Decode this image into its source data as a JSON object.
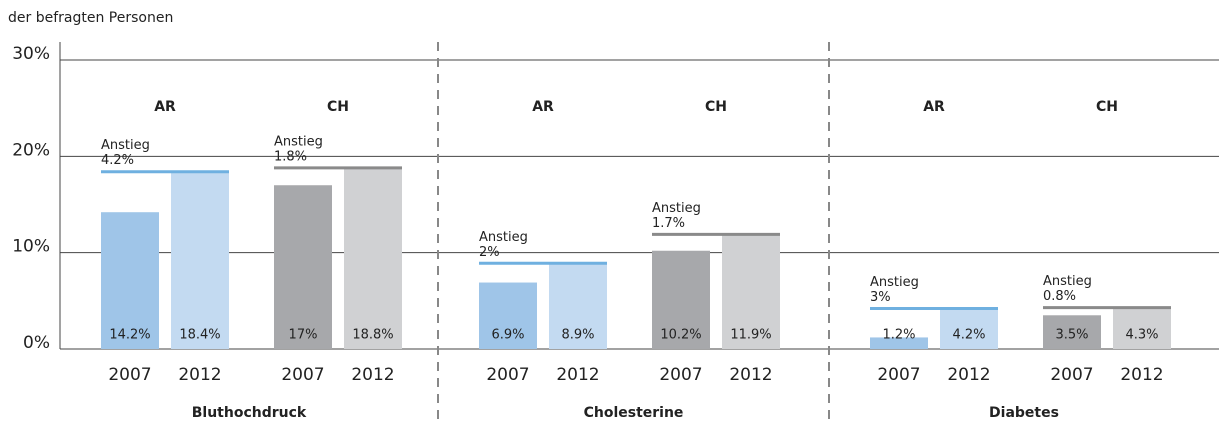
{
  "chart_data": {
    "type": "bar",
    "subtitle": "der befragten Personen",
    "ylim": [
      0,
      30
    ],
    "yticks": [
      {
        "value": 0,
        "label": "0%"
      },
      {
        "value": 10,
        "label": "10%"
      },
      {
        "value": 20,
        "label": "20%"
      },
      {
        "value": 30,
        "label": "30%"
      }
    ],
    "grid": true,
    "panels": [
      {
        "name": "Bluthochdruck",
        "groups": [
          {
            "name": "AR",
            "categories": [
              "2007",
              "2012"
            ],
            "values": [
              14.2,
              18.4
            ],
            "value_labels": [
              "14.2%",
              "18.4%"
            ],
            "colors": [
              "#9fc5e8",
              "#c3daf1"
            ],
            "line_color": "#6fb0e0",
            "annotation": "Anstieg",
            "increase": "4.2%"
          },
          {
            "name": "CH",
            "categories": [
              "2007",
              "2012"
            ],
            "values": [
              17,
              18.8
            ],
            "value_labels": [
              "17%",
              "18.8%"
            ],
            "colors": [
              "#a7a8ab",
              "#d0d1d3"
            ],
            "line_color": "#8a8a8a",
            "annotation": "Anstieg",
            "increase": "1.8%"
          }
        ]
      },
      {
        "name": "Cholesterine",
        "groups": [
          {
            "name": "AR",
            "categories": [
              "2007",
              "2012"
            ],
            "values": [
              6.9,
              8.9
            ],
            "value_labels": [
              "6.9%",
              "8.9%"
            ],
            "colors": [
              "#9fc5e8",
              "#c3daf1"
            ],
            "line_color": "#6fb0e0",
            "annotation": "Anstieg",
            "increase": "2%"
          },
          {
            "name": "CH",
            "categories": [
              "2007",
              "2012"
            ],
            "values": [
              10.2,
              11.9
            ],
            "value_labels": [
              "10.2%",
              "11.9%"
            ],
            "colors": [
              "#a7a8ab",
              "#d0d1d3"
            ],
            "line_color": "#8a8a8a",
            "annotation": "Anstieg",
            "increase": "1.7%"
          }
        ]
      },
      {
        "name": "Diabetes",
        "groups": [
          {
            "name": "AR",
            "categories": [
              "2007",
              "2012"
            ],
            "values": [
              1.2,
              4.2
            ],
            "value_labels": [
              "1.2%",
              "4.2%"
            ],
            "colors": [
              "#9fc5e8",
              "#c3daf1"
            ],
            "line_color": "#6fb0e0",
            "annotation": "Anstieg",
            "increase": "3%"
          },
          {
            "name": "CH",
            "categories": [
              "2007",
              "2012"
            ],
            "values": [
              3.5,
              4.3
            ],
            "value_labels": [
              "3.5%",
              "4.3%"
            ],
            "colors": [
              "#a7a8ab",
              "#d0d1d3"
            ],
            "line_color": "#8a8a8a",
            "annotation": "Anstieg",
            "increase": "0.8%"
          }
        ]
      }
    ]
  }
}
